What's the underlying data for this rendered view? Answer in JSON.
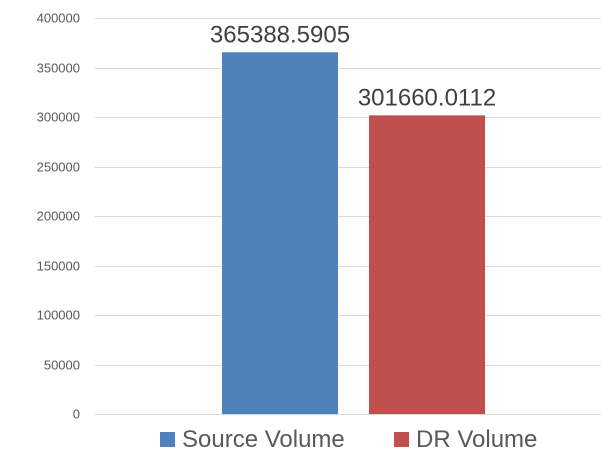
{
  "chart_data": {
    "type": "bar",
    "title": "",
    "xlabel": "",
    "ylabel": "",
    "ylim": [
      0,
      400000
    ],
    "yticks": [
      0,
      50000,
      100000,
      150000,
      200000,
      250000,
      300000,
      350000,
      400000
    ],
    "ytick_labels": [
      "0",
      "50000",
      "100000",
      "150000",
      "200000",
      "250000",
      "300000",
      "350000",
      "400000"
    ],
    "grid": true,
    "legend_position": "bottom",
    "series": [
      {
        "name": "Source Volume",
        "value": 365388.5905,
        "label": "365388.5905",
        "color": "#4f81bd"
      },
      {
        "name": "DR Volume",
        "value": 301660.0112,
        "label": "301660.0112",
        "color": "#c0504d"
      }
    ]
  }
}
